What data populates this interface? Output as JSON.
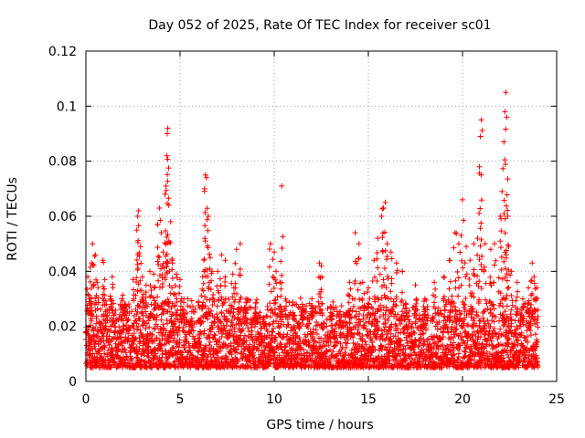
{
  "chart_data": {
    "type": "scatter",
    "title": "Day 052 of 2025, Rate Of TEC Index for receiver sc01",
    "xlabel": "GPS time / hours",
    "ylabel": "ROTI / TECUs",
    "xlim": [
      0,
      25
    ],
    "ylim": [
      0,
      0.12
    ],
    "x_ticks": [
      0,
      5,
      10,
      15,
      20,
      25
    ],
    "x_tick_labels": [
      "0",
      "5",
      "10",
      "15",
      "20",
      "25"
    ],
    "y_ticks": [
      0,
      0.02,
      0.04,
      0.06,
      0.08,
      0.1,
      0.12
    ],
    "y_tick_labels": [
      "0",
      "0.02",
      "0.04",
      "0.06",
      "0.08",
      "0.1",
      "0.12"
    ],
    "grid": true,
    "marker": "+",
    "color": "#ff0000",
    "series": [
      {
        "points": [
          [
            0.1,
            0.038
          ],
          [
            0.2,
            0.03
          ],
          [
            0.3,
            0.043
          ],
          [
            0.35,
            0.05
          ],
          [
            0.5,
            0.046
          ],
          [
            0.6,
            0.036
          ],
          [
            0.9,
            0.044
          ],
          [
            1.0,
            0.037
          ],
          [
            1.3,
            0.031
          ],
          [
            1.4,
            0.038
          ],
          [
            1.9,
            0.03
          ],
          [
            2.1,
            0.028
          ],
          [
            2.5,
            0.037
          ],
          [
            2.7,
            0.055
          ],
          [
            2.75,
            0.06
          ],
          [
            2.8,
            0.062
          ],
          [
            2.9,
            0.049
          ],
          [
            3.0,
            0.038
          ],
          [
            3.2,
            0.035
          ],
          [
            3.4,
            0.04
          ],
          [
            3.6,
            0.039
          ],
          [
            3.8,
            0.057
          ],
          [
            3.9,
            0.063
          ],
          [
            4.0,
            0.054
          ],
          [
            4.1,
            0.047
          ],
          [
            4.2,
            0.068
          ],
          [
            4.25,
            0.071
          ],
          [
            4.3,
            0.082
          ],
          [
            4.32,
            0.09
          ],
          [
            4.35,
            0.092
          ],
          [
            4.4,
            0.064
          ],
          [
            4.5,
            0.058
          ],
          [
            4.6,
            0.043
          ],
          [
            4.8,
            0.039
          ],
          [
            5.0,
            0.037
          ],
          [
            5.2,
            0.03
          ],
          [
            5.5,
            0.02
          ],
          [
            6.0,
            0.022
          ],
          [
            6.2,
            0.038
          ],
          [
            6.3,
            0.07
          ],
          [
            6.35,
            0.075
          ],
          [
            6.4,
            0.074
          ],
          [
            6.5,
            0.06
          ],
          [
            6.6,
            0.045
          ],
          [
            6.7,
            0.04
          ],
          [
            7.0,
            0.04
          ],
          [
            7.2,
            0.046
          ],
          [
            7.4,
            0.044
          ],
          [
            7.8,
            0.039
          ],
          [
            8.0,
            0.048
          ],
          [
            8.2,
            0.05
          ],
          [
            8.5,
            0.03
          ],
          [
            9.0,
            0.027
          ],
          [
            9.5,
            0.02
          ],
          [
            9.8,
            0.05
          ],
          [
            10.0,
            0.047
          ],
          [
            10.1,
            0.04
          ],
          [
            10.3,
            0.036
          ],
          [
            10.4,
            0.071
          ],
          [
            10.6,
            0.03
          ],
          [
            11.0,
            0.025
          ],
          [
            11.5,
            0.028
          ],
          [
            12.0,
            0.03
          ],
          [
            12.4,
            0.043
          ],
          [
            12.5,
            0.042
          ],
          [
            13.0,
            0.025
          ],
          [
            13.5,
            0.022
          ],
          [
            14.0,
            0.036
          ],
          [
            14.3,
            0.054
          ],
          [
            14.5,
            0.05
          ],
          [
            14.7,
            0.036
          ],
          [
            15.0,
            0.034
          ],
          [
            15.3,
            0.044
          ],
          [
            15.5,
            0.052
          ],
          [
            15.7,
            0.06
          ],
          [
            15.8,
            0.063
          ],
          [
            15.9,
            0.065
          ],
          [
            16.0,
            0.05
          ],
          [
            16.2,
            0.047
          ],
          [
            16.5,
            0.043
          ],
          [
            16.8,
            0.04
          ],
          [
            17.0,
            0.028
          ],
          [
            17.5,
            0.035
          ],
          [
            18.0,
            0.03
          ],
          [
            18.5,
            0.036
          ],
          [
            19.0,
            0.038
          ],
          [
            19.3,
            0.044
          ],
          [
            19.6,
            0.054
          ],
          [
            19.8,
            0.05
          ],
          [
            20.0,
            0.066
          ],
          [
            20.2,
            0.049
          ],
          [
            20.4,
            0.044
          ],
          [
            20.6,
            0.05
          ],
          [
            20.8,
            0.052
          ],
          [
            20.9,
            0.078
          ],
          [
            20.95,
            0.089
          ],
          [
            21.0,
            0.095
          ],
          [
            21.2,
            0.05
          ],
          [
            21.5,
            0.048
          ],
          [
            21.7,
            0.05
          ],
          [
            22.0,
            0.06
          ],
          [
            22.1,
            0.069
          ],
          [
            22.2,
            0.087
          ],
          [
            22.25,
            0.098
          ],
          [
            22.3,
            0.105
          ],
          [
            22.35,
            0.096
          ],
          [
            22.4,
            0.06
          ],
          [
            22.6,
            0.04
          ],
          [
            22.9,
            0.036
          ],
          [
            23.2,
            0.03
          ],
          [
            23.5,
            0.034
          ],
          [
            23.7,
            0.043
          ],
          [
            23.8,
            0.038
          ],
          [
            23.95,
            0.034
          ]
        ],
        "baseline_band": [
          0.005,
          0.022
        ]
      }
    ]
  }
}
